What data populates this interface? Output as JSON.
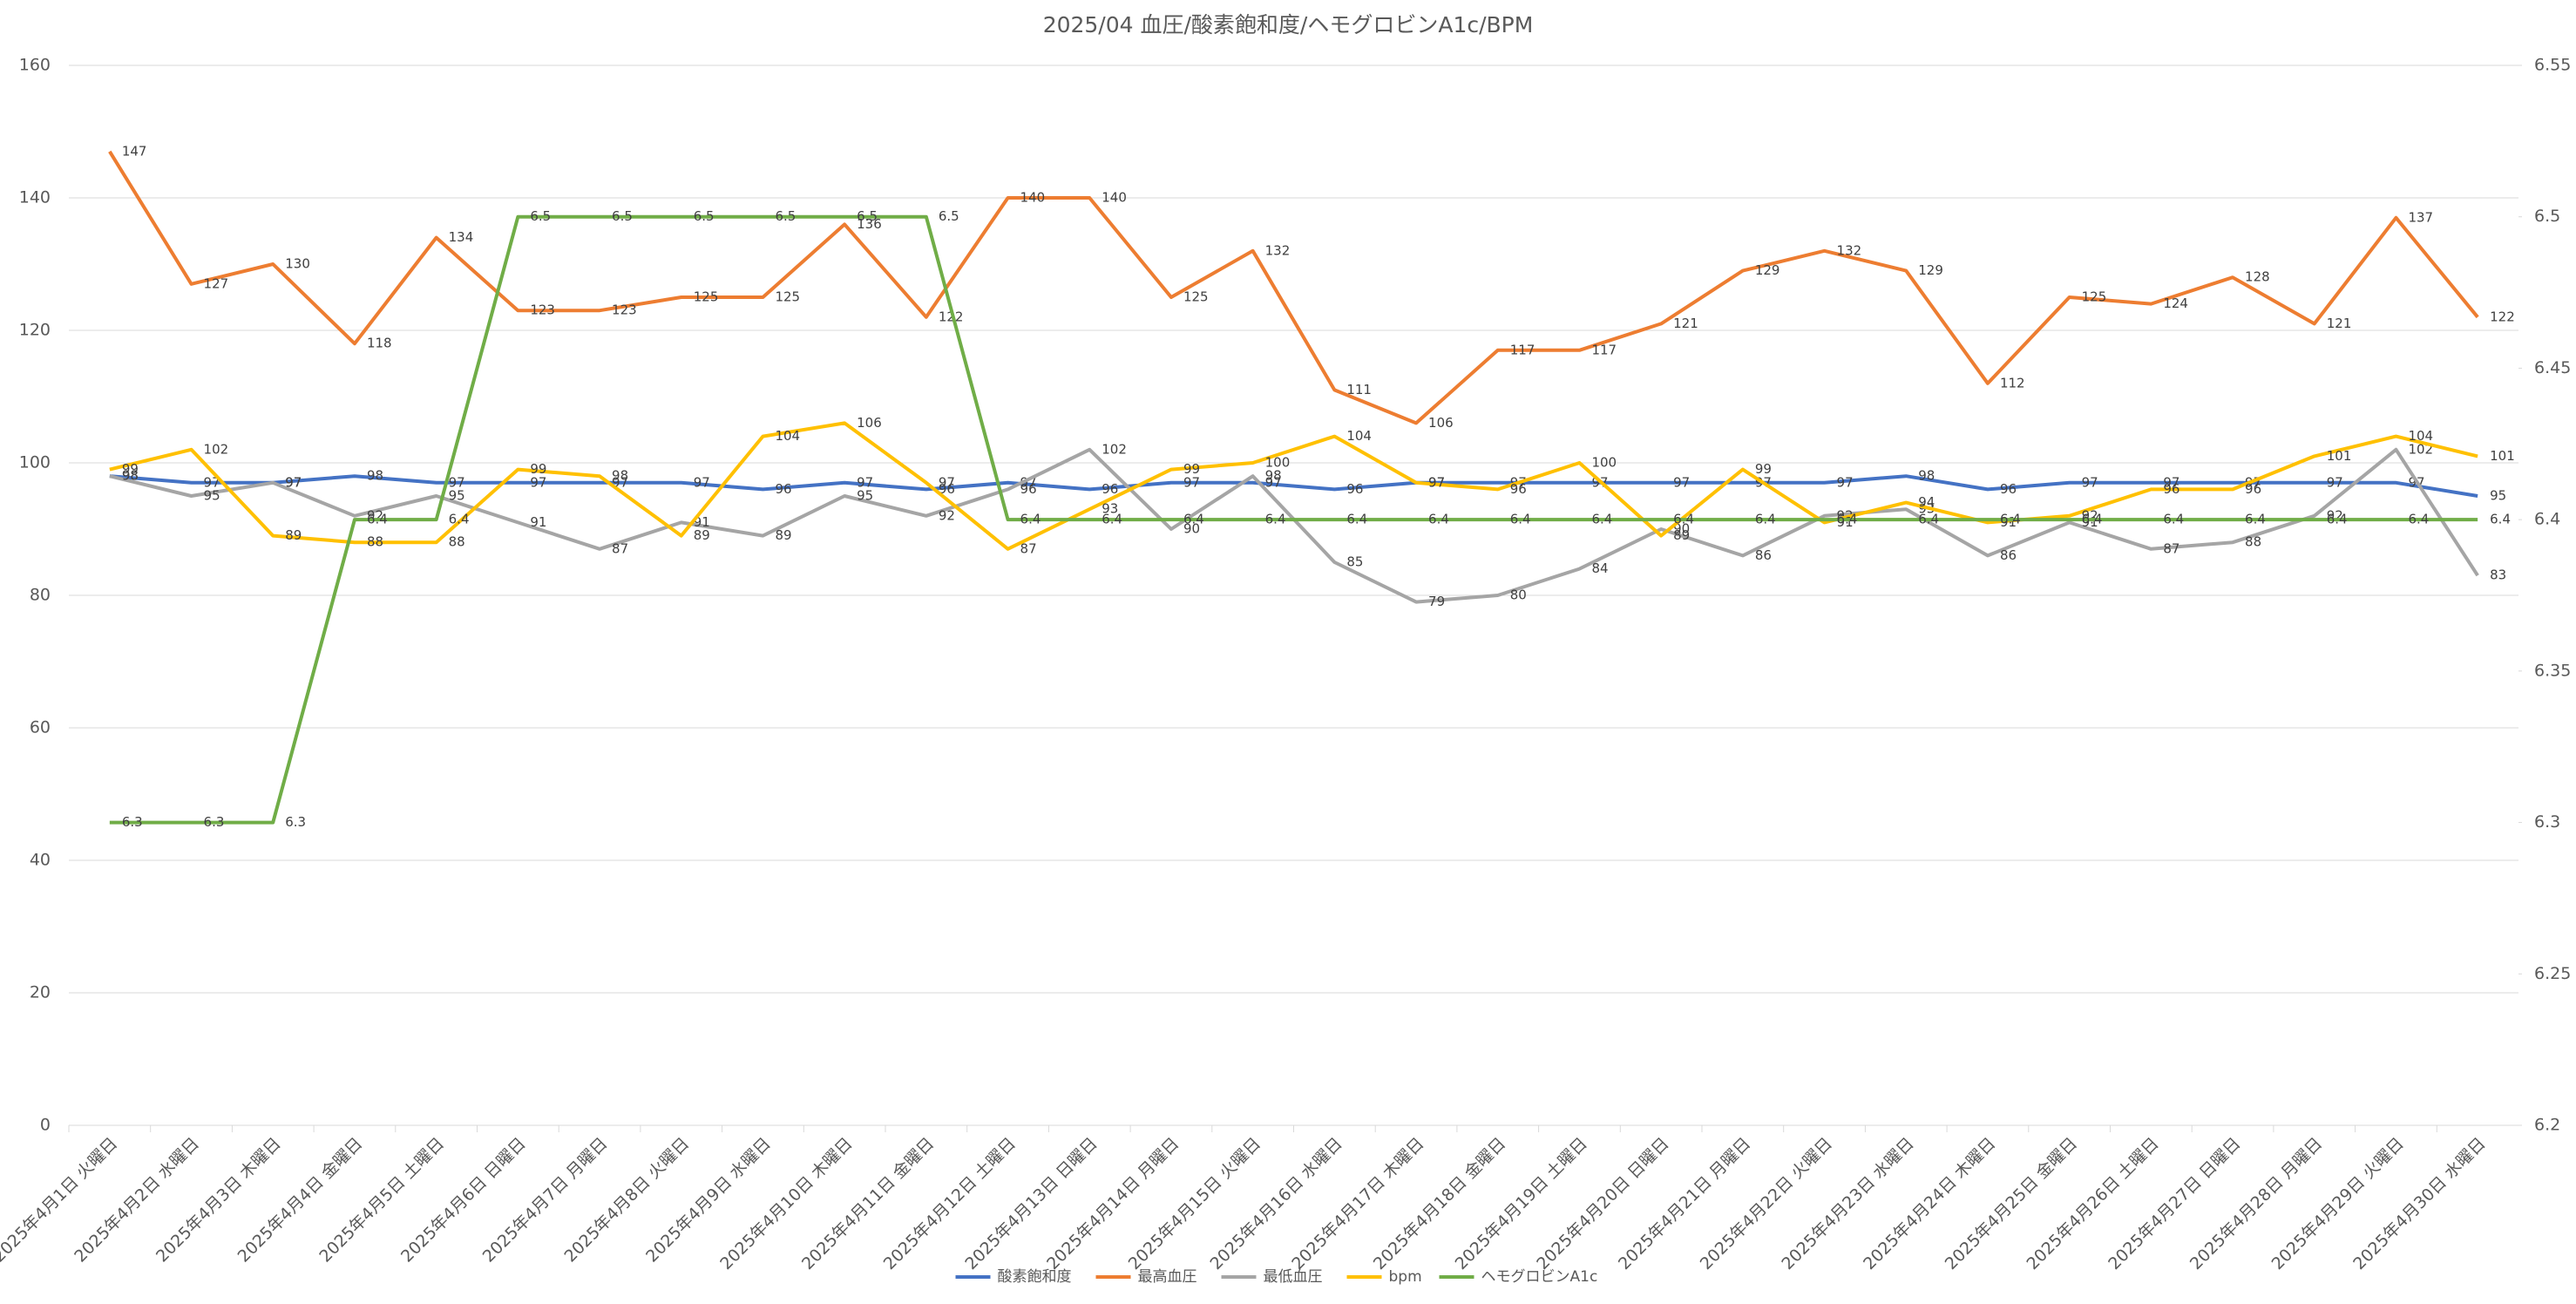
{
  "chart_data": {
    "type": "line",
    "title": "2025/04 血圧/酸素飽和度/ヘモグロビンA1c/BPM",
    "categories": [
      "2025年4月1日 火曜日",
      "2025年4月2日 水曜日",
      "2025年4月3日 木曜日",
      "2025年4月4日 金曜日",
      "2025年4月5日 土曜日",
      "2025年4月6日 日曜日",
      "2025年4月7日 月曜日",
      "2025年4月8日 火曜日",
      "2025年4月9日 水曜日",
      "2025年4月10日 木曜日",
      "2025年4月11日 金曜日",
      "2025年4月12日 土曜日",
      "2025年4月13日 日曜日",
      "2025年4月14日 月曜日",
      "2025年4月15日 火曜日",
      "2025年4月16日 水曜日",
      "2025年4月17日 木曜日",
      "2025年4月18日 金曜日",
      "2025年4月19日 土曜日",
      "2025年4月20日 日曜日",
      "2025年4月21日 月曜日",
      "2025年4月22日 火曜日",
      "2025年4月23日 水曜日",
      "2025年4月24日 木曜日",
      "2025年4月25日 金曜日",
      "2025年4月26日 土曜日",
      "2025年4月27日 日曜日",
      "2025年4月28日 月曜日",
      "2025年4月29日 火曜日",
      "2025年4月30日 水曜日"
    ],
    "series": [
      {
        "name": "酸素飽和度",
        "color": "#4472c4",
        "values": [
          98,
          97,
          97,
          98,
          97,
          97,
          97,
          97,
          96,
          97,
          96,
          97,
          96,
          97,
          97,
          96,
          97,
          97,
          97,
          97,
          97,
          97,
          98,
          96,
          97,
          97,
          97,
          97,
          97,
          95
        ]
      },
      {
        "name": "最高血圧",
        "color": "#ed7d31",
        "values": [
          147,
          127,
          130,
          118,
          134,
          123,
          123,
          125,
          125,
          136,
          122,
          140,
          140,
          125,
          132,
          111,
          106,
          117,
          117,
          121,
          129,
          132,
          129,
          112,
          125,
          124,
          128,
          121,
          137,
          122
        ]
      },
      {
        "name": "最低血圧",
        "color": "#a5a5a5",
        "values": [
          98,
          95,
          97,
          92,
          95,
          91,
          87,
          91,
          89,
          95,
          92,
          96,
          102,
          90,
          98,
          85,
          79,
          80,
          84,
          90,
          86,
          92,
          93,
          86,
          91,
          87,
          88,
          92,
          102,
          83
        ]
      },
      {
        "name": "bpm",
        "color": "#ffc000",
        "values": [
          99,
          102,
          89,
          88,
          88,
          99,
          98,
          89,
          104,
          106,
          97,
          87,
          93,
          99,
          100,
          104,
          97,
          96,
          100,
          89,
          99,
          91,
          94,
          91,
          92,
          96,
          96,
          101,
          104,
          101
        ]
      },
      {
        "name": "ヘモグロビンA1c",
        "color": "#70ad47",
        "axis": "y2",
        "values": [
          6.3,
          6.3,
          6.3,
          6.4,
          6.4,
          6.5,
          6.5,
          6.5,
          6.5,
          6.5,
          6.5,
          6.4,
          6.4,
          6.4,
          6.4,
          6.4,
          6.4,
          6.4,
          6.4,
          6.4,
          6.4,
          6.4,
          6.4,
          6.4,
          6.4,
          6.4,
          6.4,
          6.4,
          6.4,
          6.4
        ]
      }
    ],
    "ylim": [
      0,
      160
    ],
    "yticks": [
      0,
      20,
      40,
      60,
      80,
      100,
      120,
      140,
      160
    ],
    "y2lim": [
      6.2,
      6.55
    ],
    "y2ticks": [
      6.2,
      6.25,
      6.3,
      6.35,
      6.4,
      6.45,
      6.5,
      6.55
    ],
    "grid": true,
    "legend": "bottom"
  }
}
